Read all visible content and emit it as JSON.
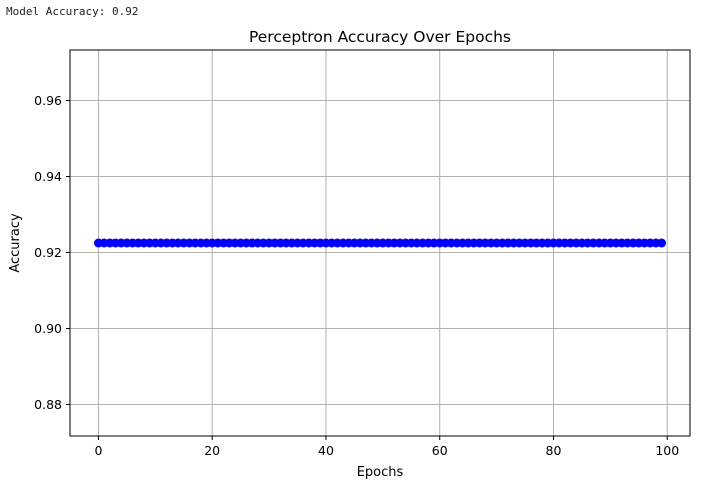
{
  "output": {
    "text": "Model Accuracy: 0.92"
  },
  "chart_data": {
    "type": "line",
    "title": "Perceptron Accuracy Over Epochs",
    "xlabel": "Epochs",
    "ylabel": "Accuracy",
    "xlim": [
      -5,
      104
    ],
    "ylim": [
      0.8717,
      0.9733
    ],
    "xticks": [
      0,
      20,
      40,
      60,
      80,
      100
    ],
    "yticks": [
      0.88,
      0.9,
      0.92,
      0.94,
      0.96
    ],
    "grid": true,
    "marker": "o",
    "colors": {
      "series": "#0000ff",
      "grid": "#b0b0b0",
      "axes": "#000000"
    },
    "series": [
      {
        "x_start": 0,
        "x_end": 99,
        "x_step": 1,
        "y_constant": 0.9225
      }
    ]
  }
}
